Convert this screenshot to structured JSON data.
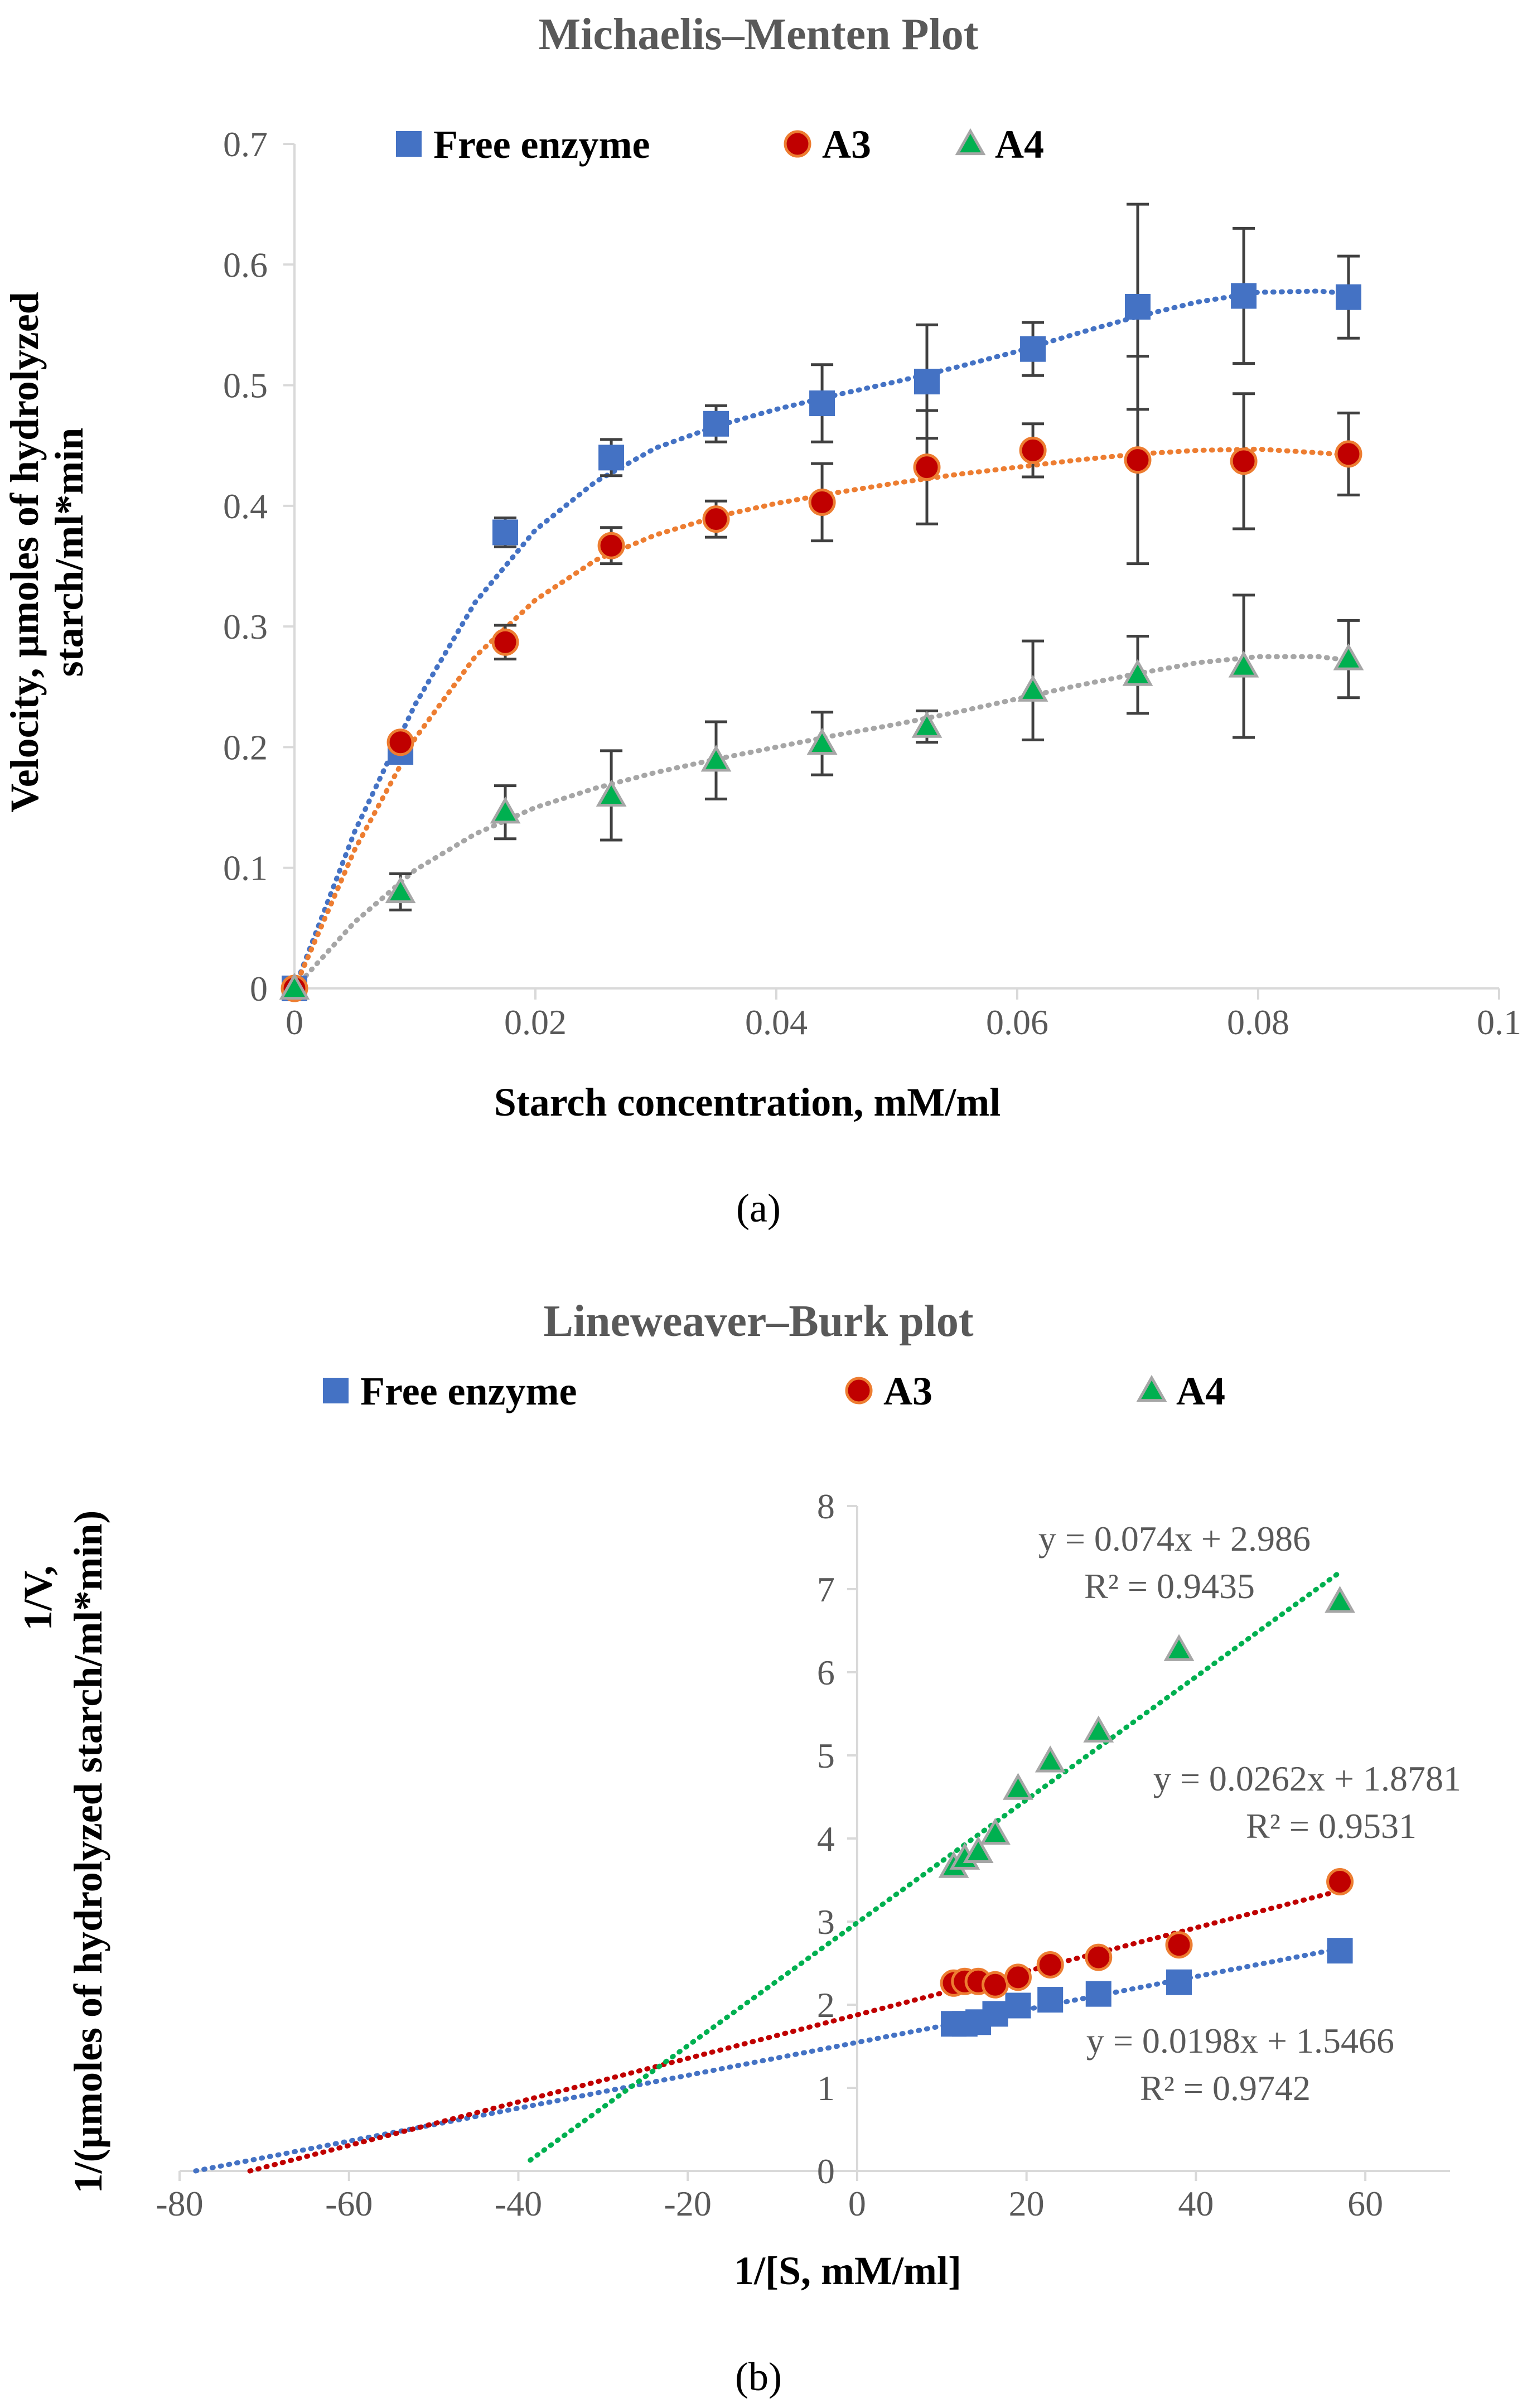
{
  "colors": {
    "free_enzyme": "#4472C4",
    "a3_fill": "#C00000",
    "a3_edge": "#ED7D31",
    "a4_fill": "#00B050",
    "a4_edge": "#A6A6A6",
    "mm_a3_trend": "#ED7D31",
    "mm_a4_trend": "#A6A6A6",
    "lb_a3_trend": "#C00000",
    "lb_a4_trend": "#00B050",
    "axis": "#D9D9D9",
    "text_gray": "#595959",
    "error_bar": "#404040"
  },
  "chart_data": [
    {
      "id": "a",
      "type": "scatter",
      "title": "Michaelis–Menten Plot",
      "xlabel": "Starch concentration, mM/ml",
      "ylabel_lines": [
        "Velocity, µmoles of hydrolyzed",
        "starch/ml*min"
      ],
      "caption": "(a)",
      "xlim": [
        0,
        0.1
      ],
      "ylim": [
        0,
        0.7
      ],
      "xticks": [
        0,
        0.02,
        0.04,
        0.06,
        0.08,
        0.1
      ],
      "xtick_labels": [
        "0",
        "0.02",
        "0.04",
        "0.06",
        "0.08",
        "0.1"
      ],
      "yticks": [
        0,
        0.1,
        0.2,
        0.3,
        0.4,
        0.5,
        0.6,
        0.7
      ],
      "ytick_labels": [
        "0",
        "0.1",
        "0.2",
        "0.3",
        "0.4",
        "0.5",
        "0.6",
        "0.7"
      ],
      "legend": [
        "Free enzyme",
        "A3",
        "A4"
      ],
      "legend_position": "top",
      "grid": false,
      "series": [
        {
          "name": "Free enzyme",
          "marker": "square",
          "x": [
            0,
            0.0088,
            0.0175,
            0.0263,
            0.035,
            0.0438,
            0.0525,
            0.0613,
            0.07,
            0.0788,
            0.0875
          ],
          "y": [
            0,
            0.196,
            0.378,
            0.44,
            0.468,
            0.485,
            0.503,
            0.53,
            0.565,
            0.574,
            0.573
          ],
          "err": [
            0,
            0,
            0.012,
            0.015,
            0.015,
            0.032,
            0.047,
            0.022,
            0.085,
            0.056,
            0.034
          ]
        },
        {
          "name": "A3",
          "marker": "circle",
          "x": [
            0,
            0.0088,
            0.0175,
            0.0263,
            0.035,
            0.0438,
            0.0525,
            0.0613,
            0.07,
            0.0788,
            0.0875
          ],
          "y": [
            0,
            0.204,
            0.287,
            0.367,
            0.389,
            0.403,
            0.432,
            0.446,
            0.438,
            0.437,
            0.443
          ],
          "err": [
            0,
            0,
            0.014,
            0.015,
            0.015,
            0.032,
            0.047,
            0.022,
            0.086,
            0.056,
            0.034
          ]
        },
        {
          "name": "A4",
          "marker": "triangle",
          "x": [
            0,
            0.0088,
            0.0175,
            0.0263,
            0.035,
            0.0438,
            0.0525,
            0.0613,
            0.07,
            0.0788,
            0.0875
          ],
          "y": [
            0,
            0.08,
            0.146,
            0.16,
            0.189,
            0.203,
            0.217,
            0.247,
            0.26,
            0.267,
            0.273
          ],
          "err": [
            0,
            0.015,
            0.022,
            0.037,
            0.032,
            0.026,
            0.013,
            0.041,
            0.032,
            0.059,
            0.032
          ]
        }
      ],
      "trendlines": [
        {
          "series": "Free enzyme",
          "x": [
            0,
            0.005,
            0.01,
            0.015,
            0.02,
            0.025,
            0.03,
            0.035,
            0.04,
            0.045,
            0.05,
            0.055,
            0.06,
            0.065,
            0.07,
            0.075,
            0.08,
            0.085,
            0.0875
          ],
          "y": [
            0,
            0.13,
            0.235,
            0.32,
            0.38,
            0.42,
            0.448,
            0.466,
            0.48,
            0.492,
            0.503,
            0.515,
            0.528,
            0.543,
            0.557,
            0.569,
            0.577,
            0.578,
            0.576
          ]
        },
        {
          "series": "A3",
          "x": [
            0,
            0.005,
            0.01,
            0.015,
            0.02,
            0.025,
            0.03,
            0.035,
            0.04,
            0.045,
            0.05,
            0.055,
            0.06,
            0.065,
            0.07,
            0.075,
            0.08,
            0.085,
            0.0875
          ],
          "y": [
            0,
            0.115,
            0.207,
            0.275,
            0.322,
            0.355,
            0.376,
            0.391,
            0.402,
            0.411,
            0.419,
            0.426,
            0.432,
            0.438,
            0.443,
            0.446,
            0.447,
            0.444,
            0.442
          ]
        },
        {
          "series": "A4",
          "x": [
            0,
            0.005,
            0.01,
            0.015,
            0.02,
            0.025,
            0.03,
            0.035,
            0.04,
            0.045,
            0.05,
            0.055,
            0.06,
            0.065,
            0.07,
            0.075,
            0.08,
            0.085,
            0.0875
          ],
          "y": [
            0,
            0.055,
            0.098,
            0.128,
            0.15,
            0.166,
            0.179,
            0.19,
            0.2,
            0.21,
            0.219,
            0.229,
            0.24,
            0.251,
            0.261,
            0.27,
            0.275,
            0.275,
            0.272
          ]
        }
      ]
    },
    {
      "id": "b",
      "type": "scatter",
      "title": "Lineweaver–Burk plot",
      "xlabel": "1/[S, mM/ml]",
      "ylabel_lines": [
        "1/V,",
        "1/(µmoles of hydrolyzed starch/ml*min)"
      ],
      "caption": "(b)",
      "xlim": [
        -80,
        70
      ],
      "ylim": [
        0,
        8
      ],
      "xticks": [
        -80,
        -60,
        -40,
        -20,
        0,
        20,
        40,
        60
      ],
      "xtick_labels": [
        "-80",
        "-60",
        "-40",
        "-20",
        "0",
        "20",
        "40",
        "60"
      ],
      "yticks": [
        0,
        1,
        2,
        3,
        4,
        5,
        6,
        7,
        8
      ],
      "ytick_labels": [
        "0",
        "1",
        "2",
        "3",
        "4",
        "5",
        "6",
        "7",
        "8"
      ],
      "legend": [
        "Free enzyme",
        "A3",
        "A4"
      ],
      "legend_position": "top",
      "grid": false,
      "series": [
        {
          "name": "Free enzyme",
          "marker": "square",
          "x": [
            11.4,
            12.7,
            14.3,
            16.3,
            19.0,
            22.8,
            28.5,
            38.0,
            57.0
          ],
          "y": [
            1.77,
            1.77,
            1.79,
            1.89,
            1.99,
            2.06,
            2.13,
            2.27,
            2.65
          ]
        },
        {
          "name": "A3",
          "marker": "circle",
          "x": [
            11.4,
            12.7,
            14.3,
            16.3,
            19.0,
            22.8,
            28.5,
            38.0,
            57.0
          ],
          "y": [
            2.26,
            2.28,
            2.28,
            2.24,
            2.33,
            2.48,
            2.57,
            2.72,
            3.48
          ]
        },
        {
          "name": "A4",
          "marker": "triangle",
          "x": [
            11.4,
            12.7,
            14.3,
            16.3,
            19.0,
            22.8,
            28.5,
            38.0,
            57.0
          ],
          "y": [
            3.66,
            3.76,
            3.84,
            4.06,
            4.6,
            4.93,
            5.29,
            6.27,
            6.85
          ]
        }
      ],
      "trendlines": [
        {
          "series": "Free enzyme",
          "slope": 0.0198,
          "intercept": 1.5466,
          "x_range": [
            -78.1,
            57
          ],
          "equation": "y = 0.0198x + 1.5466",
          "r2": "R² = 0.9742"
        },
        {
          "series": "A3",
          "slope": 0.0262,
          "intercept": 1.8781,
          "x_range": [
            -71.7,
            57
          ],
          "equation": "y = 0.0262x + 1.8781",
          "r2": "R² = 0.9531"
        },
        {
          "series": "A4",
          "slope": 0.074,
          "intercept": 2.986,
          "x_range": [
            -38.6,
            57
          ],
          "equation": "y = 0.074x + 2.986",
          "r2": "R² = 0.9435"
        }
      ]
    }
  ]
}
